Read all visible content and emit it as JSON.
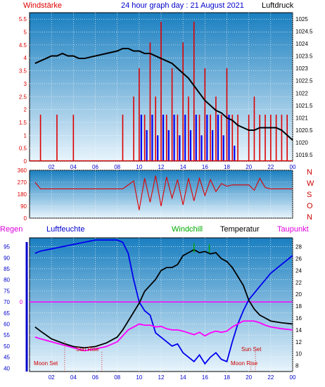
{
  "colors": {
    "red": "#dd0000",
    "blue": "#0000ee",
    "black": "#000000",
    "magenta": "#ff00ff",
    "green": "#00aa00",
    "sky_top": "#1a7fc0",
    "sky_bottom": "#e8f4fc"
  },
  "header": {
    "wind_label": "Windstärke",
    "title": "24 hour graph day : 21 August 2021",
    "pressure_label": "Luftdruck"
  },
  "mid_labels": {
    "regen": "Regen",
    "humidity": "Luftfeuchte",
    "windchill": "Windchill",
    "temperature": "Temperatur",
    "dewpoint": "Taupunkt"
  },
  "compass": [
    "N",
    "W",
    "S",
    "O",
    "N"
  ],
  "annotations": {
    "sun_rise": "Sun Rise",
    "moon_set": "Moon Set",
    "sun_set": "Sun Set",
    "moon_rise": "Moon Rise"
  },
  "x_ticks": [
    "02",
    "04",
    "06",
    "08",
    "10",
    "12",
    "14",
    "16",
    "18",
    "20",
    "22",
    "00"
  ],
  "chart_data": [
    {
      "type": "line",
      "name": "wind_and_pressure",
      "y_left_ticks": [
        "0",
        "0.5",
        "1",
        "1.5",
        "2",
        "2.5",
        "3",
        "3.5",
        "4",
        "4.5",
        "5",
        "5.5"
      ],
      "y_right_ticks": [
        "1019.5",
        "1020",
        "1020.5",
        "1021",
        "1021.5",
        "1022",
        "1022.5",
        "1023",
        "1023.5",
        "1024",
        "1024.5",
        "1025"
      ],
      "ylim_left": [
        0,
        5.75
      ],
      "ylim_right": [
        1019.25,
        1025.25
      ],
      "x": [
        0.5,
        1,
        1.5,
        2,
        2.5,
        3,
        3.5,
        4,
        4.5,
        5,
        6,
        7,
        8,
        8.5,
        9,
        9.5,
        10,
        10.5,
        11,
        11.5,
        12,
        12.5,
        13,
        13.5,
        14,
        14.5,
        15,
        15.5,
        16,
        16.5,
        17,
        17.5,
        18,
        18.5,
        19,
        19.5,
        20,
        20.5,
        21,
        21.5,
        22,
        22.5,
        23,
        23.5,
        24
      ],
      "pressure": [
        1023.2,
        1023.3,
        1023.4,
        1023.5,
        1023.5,
        1023.6,
        1023.5,
        1023.5,
        1023.4,
        1023.4,
        1023.5,
        1023.6,
        1023.7,
        1023.8,
        1023.8,
        1023.7,
        1023.7,
        1023.6,
        1023.6,
        1023.5,
        1023.4,
        1023.3,
        1023.2,
        1023.0,
        1022.8,
        1022.6,
        1022.3,
        1022.0,
        1021.7,
        1021.5,
        1021.3,
        1021.2,
        1021.0,
        1020.9,
        1020.7,
        1020.6,
        1020.5,
        1020.5,
        1020.6,
        1020.6,
        1020.6,
        1020.6,
        1020.5,
        1020.3,
        1020.1
      ],
      "wind_speed": [
        0,
        1.8,
        0,
        0,
        1.8,
        0,
        0,
        1.8,
        0,
        0,
        0,
        0,
        0,
        1.8,
        0,
        2.5,
        3.6,
        1.8,
        4.6,
        2.5,
        5.4,
        1.8,
        3.6,
        1.8,
        4.6,
        2.5,
        5.4,
        1.8,
        3.6,
        1.8,
        2.5,
        1.8,
        3.6,
        1.8,
        1.8,
        0,
        1.8,
        2.5,
        1.8,
        1.8,
        1.8,
        1.8,
        1.8,
        1.8,
        0
      ],
      "wind_gust_blue": [
        0,
        0,
        0,
        0,
        0,
        0,
        0,
        0,
        0,
        0,
        0,
        0,
        0,
        0,
        0,
        0,
        1.8,
        1.2,
        1.8,
        1.0,
        1.8,
        1.2,
        1.8,
        1.0,
        1.8,
        1.2,
        1.8,
        1.0,
        1.8,
        1.2,
        1.8,
        1.0,
        1.8,
        0.6,
        0,
        0,
        0,
        0,
        0,
        0,
        0,
        0,
        0,
        0,
        0
      ]
    },
    {
      "type": "line",
      "name": "wind_direction",
      "y_ticks": [
        "0",
        "90",
        "180",
        "270",
        "360"
      ],
      "ylim": [
        0,
        360
      ],
      "x": [
        0.5,
        1,
        2,
        3,
        4,
        5,
        6,
        7,
        8,
        8.5,
        9,
        9.5,
        10,
        10.5,
        11,
        11.5,
        12,
        12.5,
        13,
        13.5,
        14,
        14.5,
        15,
        15.5,
        16,
        16.5,
        17,
        17.5,
        18,
        18.5,
        19,
        19.5,
        20,
        20.5,
        21,
        21.5,
        22,
        23,
        24
      ],
      "values": [
        270,
        220,
        220,
        220,
        220,
        220,
        220,
        220,
        220,
        220,
        250,
        280,
        60,
        300,
        120,
        320,
        90,
        310,
        150,
        290,
        100,
        300,
        130,
        300,
        170,
        290,
        200,
        260,
        240,
        250,
        250,
        250,
        250,
        210,
        300,
        230,
        220,
        220,
        220
      ]
    },
    {
      "type": "line",
      "name": "humidity_and_temperature",
      "y_left_ticks": [
        "40",
        "45",
        "50",
        "55",
        "60",
        "65",
        "70",
        "75",
        "80",
        "85",
        "90",
        "95"
      ],
      "y_right_ticks": [
        "8",
        "10",
        "12",
        "14",
        "16",
        "18",
        "20",
        "22",
        "24",
        "26",
        "28"
      ],
      "ylim_left": [
        38.5,
        99
      ],
      "ylim_right": [
        7,
        29.5
      ],
      "rain_tick": "0",
      "x": [
        0.5,
        1,
        2,
        3,
        4,
        5,
        6,
        7,
        8,
        8.5,
        9,
        9.5,
        10,
        10.5,
        11,
        11.5,
        12,
        12.5,
        13,
        13.5,
        14,
        14.5,
        15,
        15.5,
        16,
        16.5,
        17,
        17.5,
        18,
        18.5,
        19,
        19.5,
        20,
        20.5,
        21,
        21.5,
        22,
        23,
        24
      ],
      "humidity": [
        92,
        93,
        94,
        95,
        96,
        97,
        98,
        98,
        98,
        97,
        92,
        80,
        70,
        66,
        64,
        56,
        54,
        52,
        50,
        51,
        47,
        45,
        43,
        46,
        42,
        45,
        47,
        44,
        43,
        52,
        60,
        66,
        71,
        74,
        77,
        80,
        83,
        87,
        91
      ],
      "temperature": [
        14.5,
        13.8,
        12.5,
        11.8,
        11.2,
        11.0,
        11.2,
        11.8,
        12.8,
        14.0,
        15.5,
        17.0,
        18.5,
        20.5,
        21.5,
        22.5,
        24.0,
        24.5,
        24.5,
        25.0,
        26.5,
        27.0,
        27.5,
        27.0,
        27.2,
        26.8,
        27.0,
        26.0,
        25.5,
        24.5,
        23.0,
        21.5,
        19.0,
        17.5,
        16.5,
        16.0,
        15.5,
        15.2,
        15.0
      ],
      "dewpoint": [
        12.8,
        12.5,
        12.0,
        11.5,
        11.0,
        10.5,
        10.8,
        11.2,
        12.0,
        13.0,
        14.0,
        14.5,
        15.0,
        14.8,
        14.8,
        14.5,
        14.6,
        14.2,
        14.0,
        14.0,
        13.8,
        13.5,
        13.2,
        13.6,
        13.0,
        13.5,
        13.8,
        13.6,
        13.8,
        14.5,
        15.0,
        15.5,
        15.5,
        15.5,
        15.2,
        14.8,
        14.5,
        14.2,
        14.0
      ],
      "windchill_spikes_x": [
        15.0,
        16.4
      ],
      "windchill_spikes_top": [
        28.6,
        28.4
      ],
      "rain": 0
    }
  ]
}
